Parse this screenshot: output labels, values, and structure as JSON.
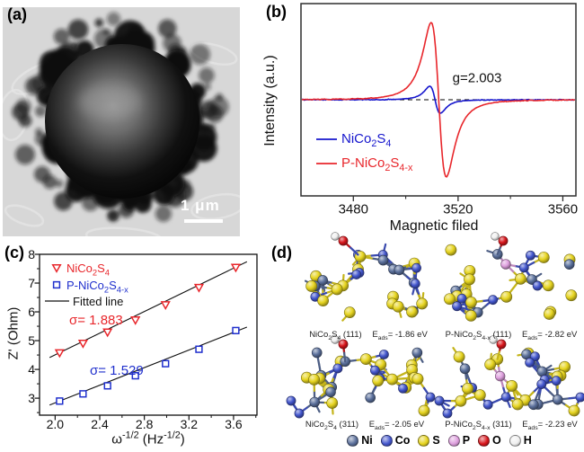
{
  "figure": {
    "panel_a": {
      "label": "(a)",
      "type": "TEM image",
      "scale_bar_text": "1 μm"
    },
    "panel_b": {
      "label": "(b)"
    },
    "panel_c": {
      "label": "(c)"
    },
    "panel_d": {
      "label": "(d)",
      "structures": [
        {
          "formula": "NiCo~2~S~4~ (111)",
          "eads": "E~ads~= -1.86 eV",
          "has_phosphorus": false
        },
        {
          "formula": "P-NiCo~2~S~4-x~ (111)",
          "eads": "E~ads~= -2.82 eV",
          "has_phosphorus": true
        },
        {
          "formula": "NiCo~2~S~4~ (311)",
          "eads": "E~ads~= -2.05 eV",
          "has_phosphorus": false
        },
        {
          "formula": "P-NiCo~2~S~4-x~ (311)",
          "eads": "E~ads~= -2.23 eV",
          "has_phosphorus": true
        }
      ],
      "atom_legend": [
        {
          "symbol": "Ni",
          "color": "#5a6f9b"
        },
        {
          "symbol": "Co",
          "color": "#4356cd"
        },
        {
          "symbol": "S",
          "color": "#e6d41f"
        },
        {
          "symbol": "P",
          "color": "#de9fde"
        },
        {
          "symbol": "O",
          "color": "#d8151b"
        },
        {
          "symbol": "H",
          "color": "#f0f0f0"
        }
      ]
    }
  },
  "chart_data": [
    {
      "id": "b",
      "type": "line",
      "xlabel": "Magnetic filed",
      "ylabel": "Intensity (a.u.)",
      "xlim": [
        3460,
        3565
      ],
      "xticks": [
        3480,
        3520,
        3560
      ],
      "xticks_minor": [
        3500,
        3540
      ],
      "annotation": "g=2.003",
      "zero_baseline_dashed": true,
      "series": [
        {
          "name": "NiCo~2~S~4~",
          "color": "#1616cd",
          "shape": "derivative-lorentzian",
          "peak_x": 3509.2,
          "trough_x": 3513.2,
          "rel_amplitude": 0.175
        },
        {
          "name": "P-NiCo~2~S~4-x~",
          "color": "#e8262b",
          "shape": "derivative-lorentzian",
          "peak_x": 3509.7,
          "trough_x": 3515.5,
          "rel_amplitude": 1.0
        }
      ]
    },
    {
      "id": "c",
      "type": "scatter",
      "xlabel": "ω^-1/2^ (Hz^-1/2^)",
      "ylabel": "Z' (Ohm)",
      "xlim": [
        1.86,
        3.81
      ],
      "ylim": [
        2.41,
        8
      ],
      "xticks": [
        2.0,
        2.4,
        2.8,
        3.2,
        3.6
      ],
      "xticks_minor": [
        2.2,
        2.6,
        3.0,
        3.4,
        3.8
      ],
      "yticks": [
        3,
        4,
        5,
        6,
        7,
        8
      ],
      "yticks_minor": [
        2.5,
        3.5,
        4.5,
        5.5,
        6.5,
        7.5
      ],
      "x": [
        2.04,
        2.25,
        2.47,
        2.72,
        2.99,
        3.29,
        3.62
      ],
      "series": [
        {
          "name": "NiCo~2~S~4~",
          "color": "#e8262b",
          "marker": "triangle-down-open",
          "values": [
            4.58,
            4.91,
            5.3,
            5.72,
            6.25,
            6.85,
            7.55
          ],
          "sigma_label": "σ= 1.883",
          "fit": {
            "slope": 1.883,
            "intercept": 0.739,
            "x_range": [
              1.95,
              3.72
            ]
          }
        },
        {
          "name": "P-NiCo~2~S~4-x~",
          "color": "#2030cd",
          "marker": "square-open",
          "values": [
            2.9,
            3.15,
            3.43,
            3.78,
            4.2,
            4.7,
            5.35
          ],
          "sigma_label": "σ= 1.529",
          "fit": {
            "slope": 1.529,
            "intercept": -0.219,
            "x_range": [
              1.95,
              3.72
            ]
          }
        }
      ],
      "fit_legend_label": "Fitted line"
    }
  ]
}
